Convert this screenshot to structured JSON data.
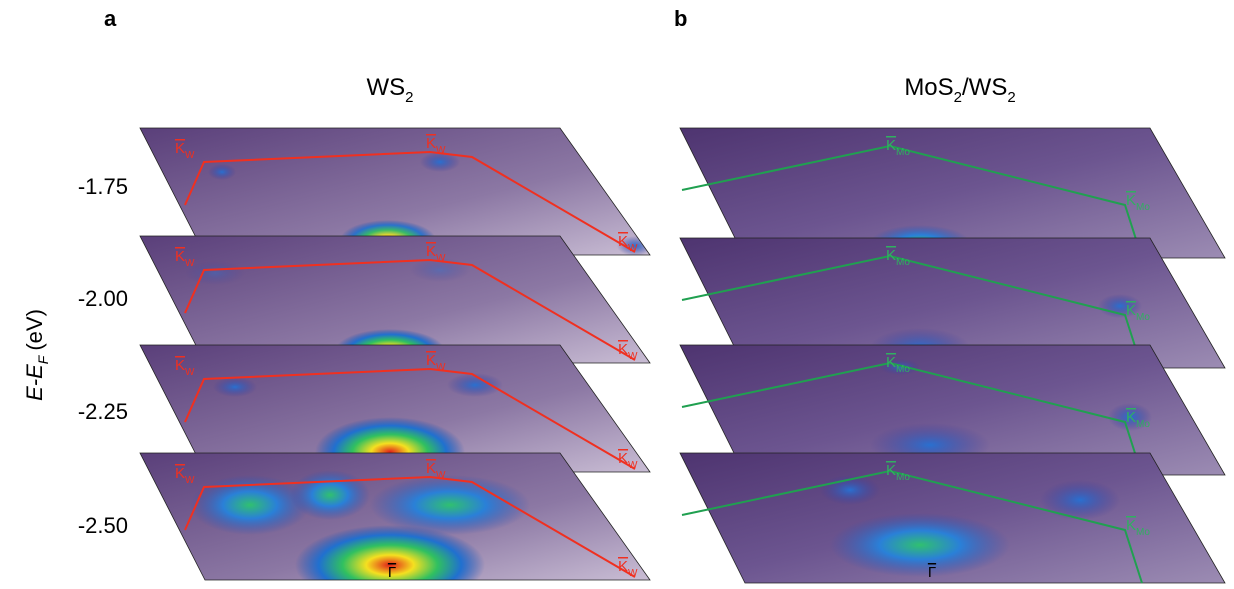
{
  "panels": [
    {
      "label": "a",
      "title": [
        "WS",
        "2"
      ],
      "k_label": [
        "K",
        "W"
      ],
      "gamma_label": "Γ"
    },
    {
      "label": "b",
      "title": [
        "MoS",
        "2",
        "/WS",
        "2"
      ],
      "k_label": [
        "K",
        "Mo"
      ],
      "gamma_label": "Γ"
    }
  ],
  "energy_axis": {
    "label": [
      "E-E",
      "F",
      "(eV)"
    ],
    "levels": [
      "-1.75",
      "-2.00",
      "-2.25",
      "-2.50"
    ]
  }
}
